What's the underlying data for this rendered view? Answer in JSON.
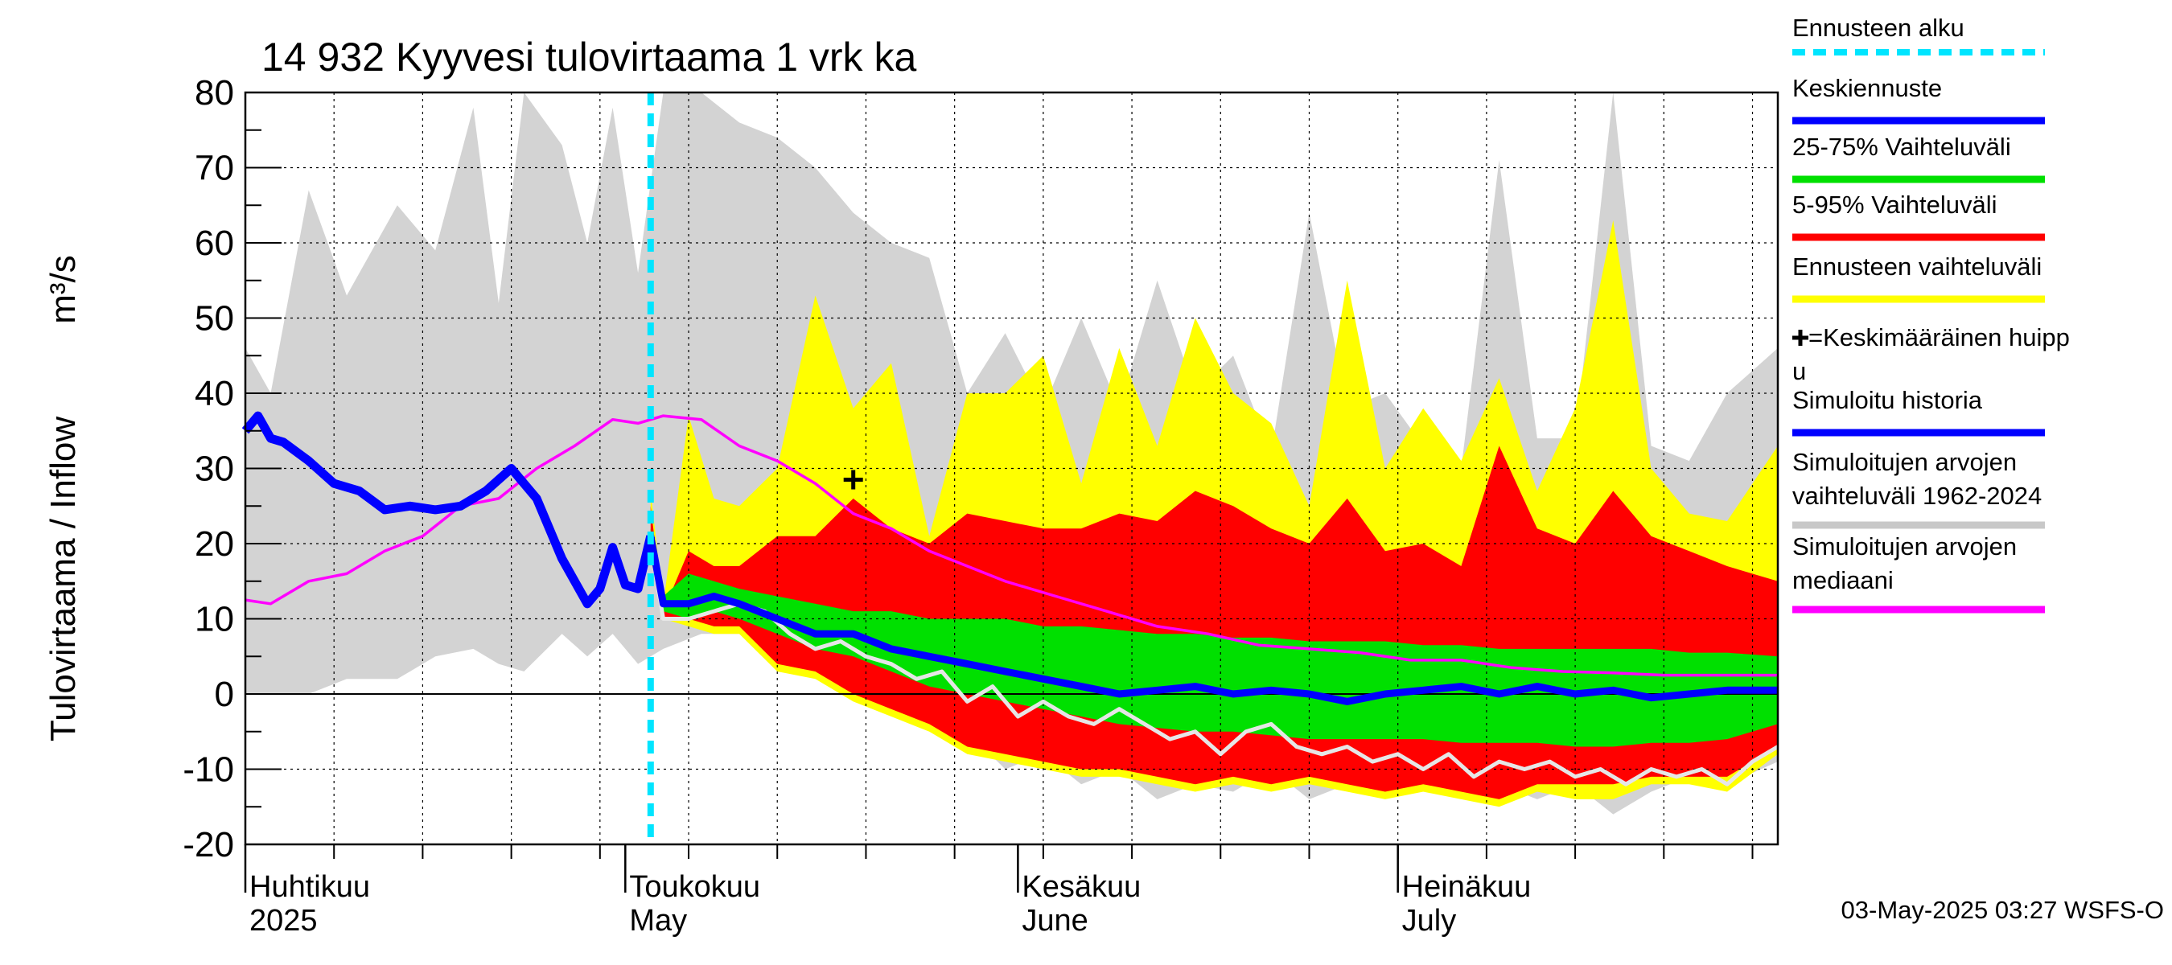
{
  "chart_data": {
    "type": "area",
    "title": "14 932 Kyyvesi tulovirtaama 1 vrk ka",
    "ylabel": "Tulovirtaama / Inflow",
    "yunit": "m³/s",
    "ylim": [
      -20,
      80
    ],
    "yticks": [
      -20,
      -10,
      0,
      10,
      20,
      30,
      40,
      50,
      60,
      70,
      80
    ],
    "xlim": [
      "2025-04-01",
      "2025-07-31"
    ],
    "grid": true,
    "forecast_start": "2025-05-03",
    "month_labels": [
      {
        "fi": "Huhtikuu",
        "en": "2025",
        "date": "2025-04-01"
      },
      {
        "fi": "Toukokuu",
        "en": "May",
        "date": "2025-05-01"
      },
      {
        "fi": "Kesäkuu",
        "en": "June",
        "date": "2025-06-01"
      },
      {
        "fi": "Heinäkuu",
        "en": "July",
        "date": "2025-07-01"
      }
    ],
    "legend": [
      {
        "label": "Ennusteen alku",
        "color": "#00e5ff",
        "style": "dashed"
      },
      {
        "label": "Keskiennuste",
        "color": "#0000ff",
        "style": "line"
      },
      {
        "label": "25-75% Vaihteluväli",
        "color": "#00e000",
        "style": "line"
      },
      {
        "label": "5-95% Vaihteluväli",
        "color": "#ff0000",
        "style": "line"
      },
      {
        "label": "Ennusteen vaihteluväli",
        "color": "#ffff00",
        "style": "line"
      },
      {
        "label": "+=Keskimääräinen huipp",
        "label2": "u",
        "color": "#000000",
        "style": "marker"
      },
      {
        "label": "Simuloitu historia",
        "color": "#0000ff",
        "style": "line"
      },
      {
        "label": "Simuloitujen arvojen",
        "label2": "vaihteluväli 1962-2024",
        "color": "#c8c8c8",
        "style": "line"
      },
      {
        "label": "Simuloitujen arvojen",
        "label2": "mediaani",
        "color": "#ff00ff",
        "style": "line"
      }
    ],
    "footer": "03-May-2025 03:27 WSFS-O",
    "mean_peak": {
      "date": "2025-05-19",
      "value": 28.5
    },
    "historical_range": {
      "dates": [
        "2025-04-01",
        "2025-04-03",
        "2025-04-06",
        "2025-04-09",
        "2025-04-13",
        "2025-04-16",
        "2025-04-19",
        "2025-04-21",
        "2025-04-23",
        "2025-04-26",
        "2025-04-28",
        "2025-04-30",
        "2025-05-02",
        "2025-05-04",
        "2025-05-07",
        "2025-05-10",
        "2025-05-13",
        "2025-05-16",
        "2025-05-19",
        "2025-05-22",
        "2025-05-25",
        "2025-05-28",
        "2025-05-31",
        "2025-06-03",
        "2025-06-06",
        "2025-06-09",
        "2025-06-12",
        "2025-06-15",
        "2025-06-18",
        "2025-06-21",
        "2025-06-24",
        "2025-06-27",
        "2025-06-30",
        "2025-07-03",
        "2025-07-06",
        "2025-07-09",
        "2025-07-12",
        "2025-07-15",
        "2025-07-18",
        "2025-07-21",
        "2025-07-24",
        "2025-07-27",
        "2025-07-31"
      ],
      "upper": [
        46,
        40,
        67,
        53,
        65,
        59,
        78,
        52,
        80,
        73,
        60,
        78,
        56,
        80,
        80,
        76,
        74,
        70,
        64,
        60,
        58,
        40,
        48,
        38,
        50,
        38,
        55,
        40,
        45,
        32,
        64,
        38,
        40,
        33,
        30,
        71,
        34,
        34,
        80,
        33,
        31,
        40,
        46
      ],
      "lower": [
        0,
        0,
        0,
        2,
        2,
        5,
        6,
        4,
        3,
        8,
        5,
        8,
        4,
        6,
        8,
        8,
        4,
        2,
        1,
        -1,
        -2,
        -5,
        -10,
        -8,
        -12,
        -10,
        -14,
        -12,
        -13,
        -10,
        -14,
        -12,
        -12,
        -11,
        -13,
        -12,
        -14,
        -12,
        -16,
        -13,
        -11,
        -12,
        -9
      ]
    },
    "median": {
      "dates": [
        "2025-04-01",
        "2025-04-03",
        "2025-04-06",
        "2025-04-09",
        "2025-04-12",
        "2025-04-15",
        "2025-04-18",
        "2025-04-21",
        "2025-04-24",
        "2025-04-27",
        "2025-04-30",
        "2025-05-02",
        "2025-05-04",
        "2025-05-07",
        "2025-05-10",
        "2025-05-13",
        "2025-05-16",
        "2025-05-19",
        "2025-05-22",
        "2025-05-25",
        "2025-05-28",
        "2025-05-31",
        "2025-06-04",
        "2025-06-08",
        "2025-06-12",
        "2025-06-16",
        "2025-06-20",
        "2025-06-24",
        "2025-06-28",
        "2025-07-02",
        "2025-07-06",
        "2025-07-10",
        "2025-07-14",
        "2025-07-18",
        "2025-07-22",
        "2025-07-26",
        "2025-07-31"
      ],
      "values": [
        12.5,
        12,
        15,
        16,
        19,
        21,
        25,
        26,
        30,
        33,
        36.5,
        36,
        37,
        36.5,
        33,
        31,
        28,
        24,
        22,
        19,
        17,
        15,
        13,
        11,
        9,
        8,
        6.5,
        6,
        5.5,
        4.5,
        4.5,
        3.5,
        3,
        2.8,
        2.5,
        2.5,
        2.5
      ]
    },
    "simulated_history": {
      "dates": [
        "2025-04-01",
        "2025-04-02",
        "2025-04-03",
        "2025-04-04",
        "2025-04-06",
        "2025-04-08",
        "2025-04-10",
        "2025-04-12",
        "2025-04-14",
        "2025-04-16",
        "2025-04-18",
        "2025-04-20",
        "2025-04-22",
        "2025-04-24",
        "2025-04-26",
        "2025-04-28",
        "2025-04-29",
        "2025-04-30",
        "2025-05-01",
        "2025-05-02",
        "2025-05-03"
      ],
      "values": [
        35,
        37,
        34,
        33.5,
        31,
        28,
        27,
        24.5,
        25,
        24.5,
        25,
        27,
        30,
        26,
        18,
        12,
        14,
        19.5,
        14.5,
        14,
        21
      ]
    },
    "forecast_bands": {
      "dates": [
        "2025-05-03",
        "2025-05-04",
        "2025-05-06",
        "2025-05-08",
        "2025-05-10",
        "2025-05-13",
        "2025-05-16",
        "2025-05-19",
        "2025-05-22",
        "2025-05-25",
        "2025-05-28",
        "2025-05-31",
        "2025-06-03",
        "2025-06-06",
        "2025-06-09",
        "2025-06-12",
        "2025-06-15",
        "2025-06-18",
        "2025-06-21",
        "2025-06-24",
        "2025-06-27",
        "2025-06-30",
        "2025-07-03",
        "2025-07-06",
        "2025-07-09",
        "2025-07-12",
        "2025-07-15",
        "2025-07-18",
        "2025-07-21",
        "2025-07-24",
        "2025-07-27",
        "2025-07-31"
      ],
      "outer_upper": [
        27,
        12,
        37,
        26,
        25,
        30,
        53,
        38,
        44,
        21,
        40,
        40,
        45,
        28,
        46,
        33,
        50,
        40,
        36,
        25,
        55,
        30,
        38,
        31,
        42,
        27,
        38,
        63,
        30,
        24,
        23,
        33
      ],
      "outer_lower": [
        18,
        10,
        9,
        8,
        8,
        3,
        2,
        -1,
        -3,
        -5,
        -8,
        -9,
        -10,
        -11,
        -11,
        -12,
        -13,
        -12,
        -13,
        -12,
        -13,
        -14,
        -13,
        -14,
        -15,
        -13,
        -14,
        -14,
        -12,
        -12,
        -13,
        -8
      ],
      "p95": [
        25,
        11,
        19,
        17,
        17,
        21,
        21,
        26,
        22,
        20,
        24,
        23,
        22,
        22,
        24,
        23,
        27,
        25,
        22,
        20,
        26,
        19,
        20,
        17,
        33,
        22,
        20,
        27,
        21,
        19,
        17,
        15
      ],
      "p05": [
        19,
        10,
        10,
        9,
        9,
        4,
        3,
        0,
        -2,
        -4,
        -7,
        -8,
        -9,
        -10,
        -10,
        -11,
        -12,
        -11,
        -12,
        -11,
        -12,
        -13,
        -12,
        -13,
        -14,
        -12,
        -12,
        -12,
        -11,
        -11,
        -11,
        -7
      ],
      "p75": [
        22,
        13,
        16,
        15,
        14,
        13,
        12,
        11,
        11,
        10,
        10,
        10,
        9,
        9,
        8.5,
        8,
        8,
        7.5,
        7.5,
        7,
        7,
        7,
        6.5,
        6.5,
        6,
        6,
        6,
        6,
        6,
        5.5,
        5.5,
        5
      ],
      "p25": [
        20,
        11,
        10,
        11,
        10,
        8,
        6,
        5,
        3,
        1,
        0,
        -1,
        -2,
        -3,
        -4,
        -4.5,
        -5,
        -5,
        -5.5,
        -6,
        -6,
        -6,
        -6,
        -6.5,
        -6.5,
        -6.5,
        -7,
        -7,
        -6.5,
        -6.5,
        -6,
        -4
      ],
      "mean": [
        21,
        12,
        12,
        13,
        12,
        10,
        8,
        8,
        6,
        5,
        4,
        3,
        2,
        1,
        0,
        0.5,
        1,
        0,
        0.5,
        0,
        -1,
        0,
        0.5,
        1,
        0,
        1,
        0,
        0.5,
        -0.5,
        0,
        0.5,
        0.5
      ]
    },
    "sim_trace": {
      "dates": [
        "2025-05-03",
        "2025-05-04",
        "2025-05-06",
        "2025-05-08",
        "2025-05-10",
        "2025-05-12",
        "2025-05-14",
        "2025-05-16",
        "2025-05-18",
        "2025-05-20",
        "2025-05-22",
        "2025-05-24",
        "2025-05-26",
        "2025-05-28",
        "2025-05-30",
        "2025-06-01",
        "2025-06-03",
        "2025-06-05",
        "2025-06-07",
        "2025-06-09",
        "2025-06-11",
        "2025-06-13",
        "2025-06-15",
        "2025-06-17",
        "2025-06-19",
        "2025-06-21",
        "2025-06-23",
        "2025-06-25",
        "2025-06-27",
        "2025-06-29",
        "2025-07-01",
        "2025-07-03",
        "2025-07-05",
        "2025-07-07",
        "2025-07-09",
        "2025-07-11",
        "2025-07-13",
        "2025-07-15",
        "2025-07-17",
        "2025-07-19",
        "2025-07-21",
        "2025-07-23",
        "2025-07-25",
        "2025-07-27",
        "2025-07-29",
        "2025-07-31"
      ],
      "values": [
        20,
        10,
        10,
        11,
        12,
        11,
        8,
        6,
        7,
        5,
        4,
        2,
        3,
        -1,
        1,
        -3,
        -1,
        -3,
        -4,
        -2,
        -4,
        -6,
        -5,
        -8,
        -5,
        -4,
        -7,
        -8,
        -7,
        -9,
        -8,
        -10,
        -8,
        -11,
        -9,
        -10,
        -9,
        -11,
        -10,
        -12,
        -10,
        -11,
        -10,
        -12,
        -9,
        -7
      ]
    }
  }
}
